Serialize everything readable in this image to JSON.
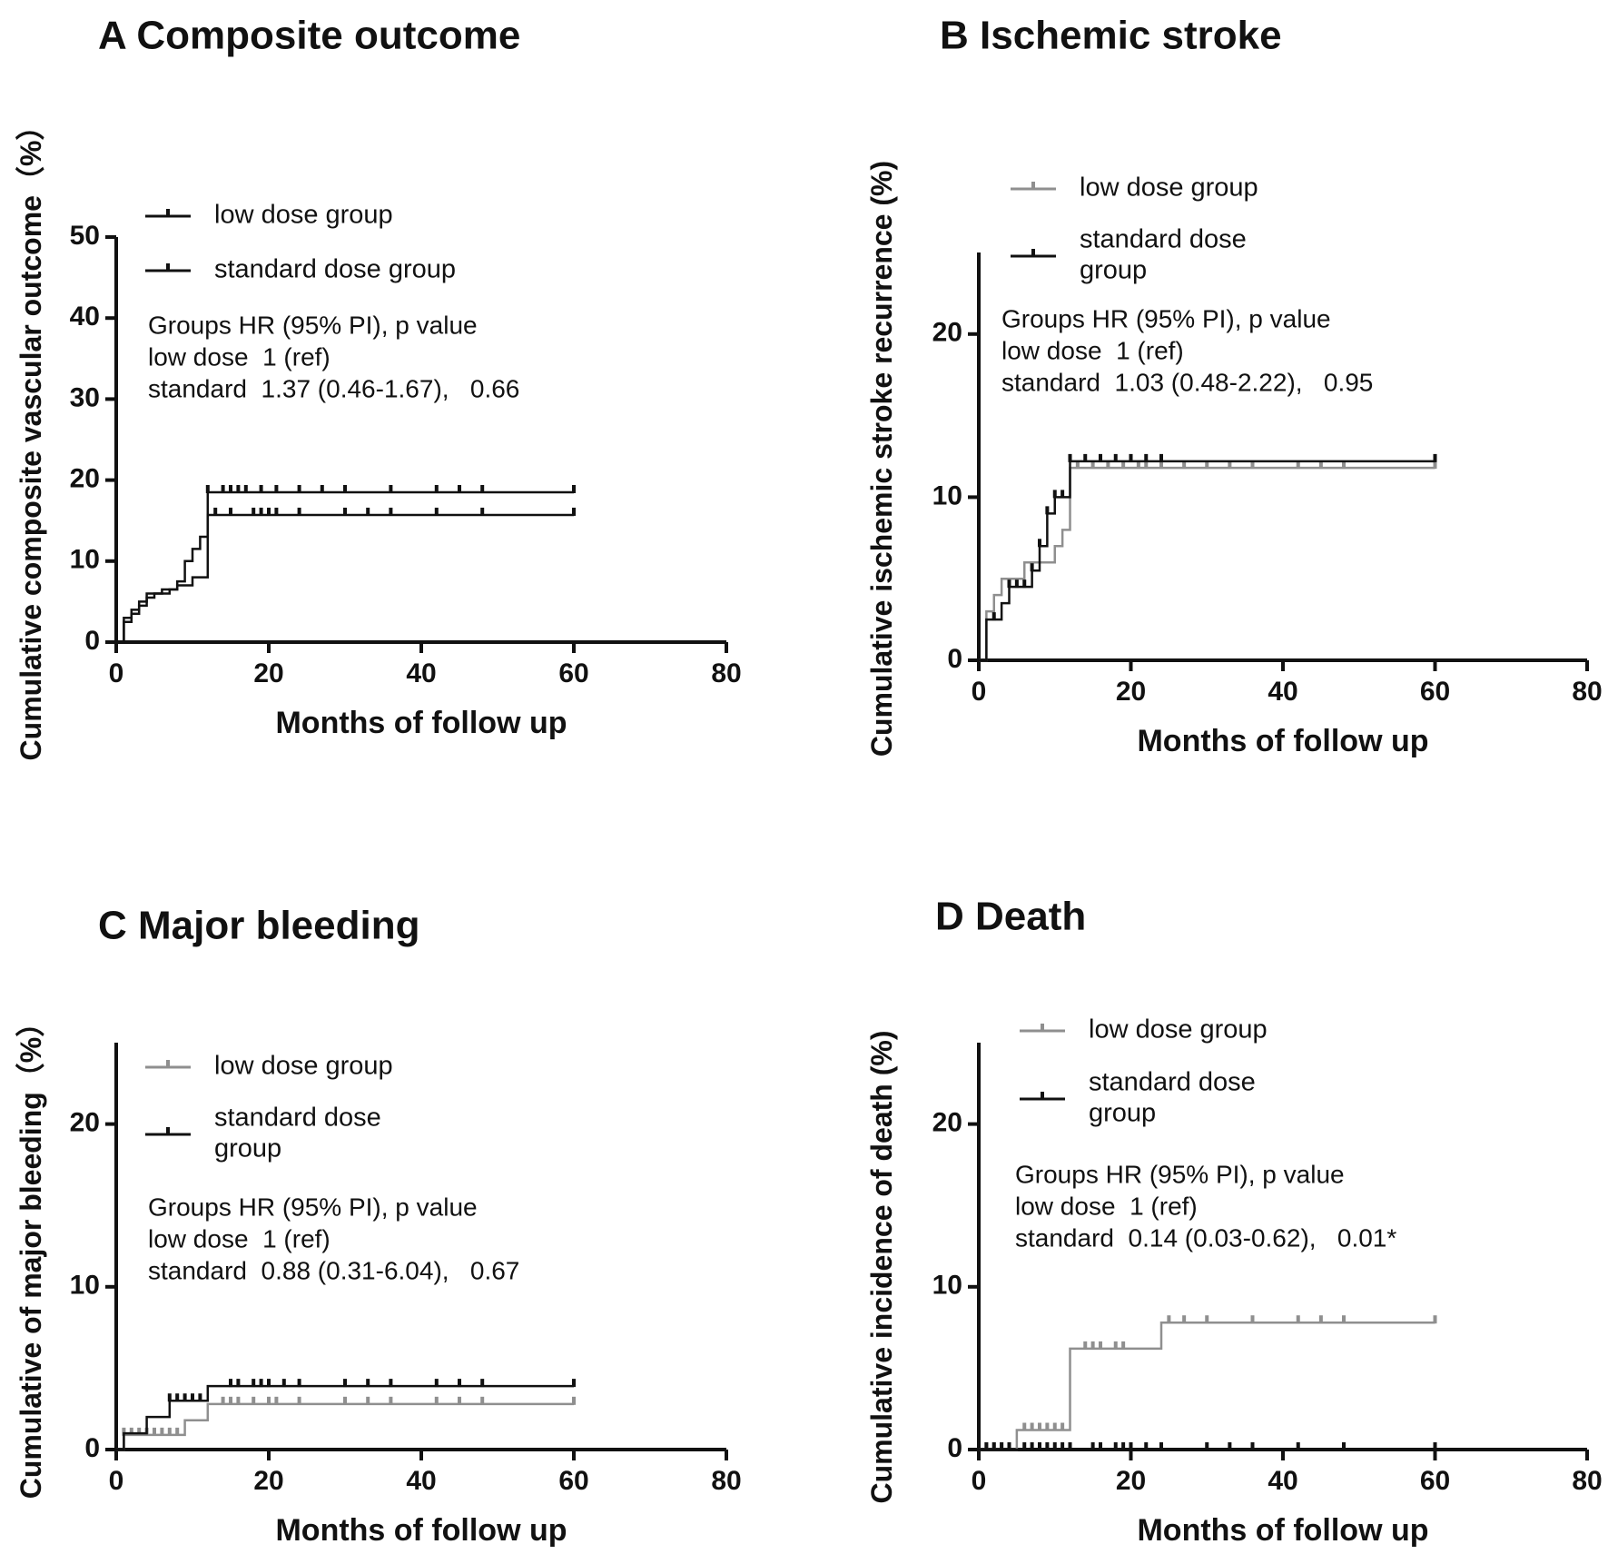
{
  "colors": {
    "low": "#8f8f8f",
    "standard": "#111111",
    "axis": "#111111"
  },
  "chart_data": [
    {
      "type": "line",
      "panel": "A",
      "title": "A Composite outcome",
      "xlabel": "Months of follow up",
      "ylabel": "Cumulative composite vascular outcome（%）",
      "xlim": [
        0,
        80
      ],
      "ylim": [
        0,
        50
      ],
      "xticks": [
        "0",
        "20",
        "40",
        "60",
        "80"
      ],
      "yticks": [
        "0",
        "10",
        "20",
        "30",
        "40",
        "50"
      ],
      "legend": [
        "low dose group",
        "standard dose group"
      ],
      "stats": [
        "Groups HR (95% PI), p value",
        "low dose  1 (ref)",
        "standard  1.37 (0.46-1.67),   0.66"
      ],
      "series": [
        {
          "name": "low dose group",
          "color_key": "standard",
          "steps": [
            [
              0,
              0
            ],
            [
              1,
              3
            ],
            [
              2,
              4
            ],
            [
              3,
              5
            ],
            [
              4,
              6
            ],
            [
              6,
              6.5
            ],
            [
              8,
              7.5
            ],
            [
              9,
              10
            ],
            [
              10,
              11.5
            ],
            [
              11,
              13
            ],
            [
              12,
              18.5
            ],
            [
              60,
              18.5
            ]
          ],
          "censor": [
            12,
            14,
            15,
            16,
            17,
            19,
            21,
            24,
            27,
            30,
            36,
            42,
            45,
            48,
            60
          ]
        },
        {
          "name": "standard dose group",
          "color_key": "standard",
          "steps": [
            [
              0,
              0
            ],
            [
              1,
              2.5
            ],
            [
              2,
              3.5
            ],
            [
              3,
              4.5
            ],
            [
              4,
              5.5
            ],
            [
              5,
              6
            ],
            [
              7,
              6.5
            ],
            [
              8,
              7
            ],
            [
              10,
              8
            ],
            [
              12,
              15.7
            ],
            [
              60,
              15.7
            ]
          ],
          "censor": [
            13,
            15,
            18,
            19,
            20,
            21,
            24,
            30,
            33,
            36,
            42,
            48,
            60
          ]
        }
      ]
    },
    {
      "type": "line",
      "panel": "B",
      "title": "B Ischemic stroke",
      "xlabel": "Months of follow up",
      "ylabel": "Cumulative ischemic stroke recurrence (%)",
      "xlim": [
        0,
        80
      ],
      "ylim": [
        0,
        25
      ],
      "xticks": [
        "0",
        "20",
        "40",
        "60",
        "80"
      ],
      "yticks": [
        "0",
        "10",
        "20"
      ],
      "legend": [
        "low dose group",
        "standard dose group"
      ],
      "legend_lines": [
        [
          "low dose group"
        ],
        [
          "standard dose",
          "group"
        ]
      ],
      "stats": [
        "Groups HR (95% PI), p value",
        "low dose  1 (ref)",
        "standard  1.03 (0.48-2.22),   0.95"
      ],
      "series": [
        {
          "name": "low dose group",
          "color_key": "low",
          "steps": [
            [
              0,
              0
            ],
            [
              1,
              3
            ],
            [
              2,
              4
            ],
            [
              3,
              5
            ],
            [
              5,
              5
            ],
            [
              6,
              6
            ],
            [
              9,
              6
            ],
            [
              10,
              7
            ],
            [
              11,
              8
            ],
            [
              12,
              11.8
            ],
            [
              60,
              11.8
            ]
          ],
          "censor": [
            13,
            15,
            17,
            19,
            21,
            22,
            24,
            27,
            30,
            33,
            36,
            42,
            45,
            48,
            60
          ]
        },
        {
          "name": "standard dose group",
          "color_key": "standard",
          "steps": [
            [
              0,
              0
            ],
            [
              1,
              2.5
            ],
            [
              3,
              3.5
            ],
            [
              4,
              4.5
            ],
            [
              7,
              5.5
            ],
            [
              8,
              7
            ],
            [
              9,
              9
            ],
            [
              10,
              10
            ],
            [
              12,
              12.2
            ],
            [
              60,
              12.2
            ]
          ],
          "censor": [
            2,
            4,
            5,
            6,
            7,
            8,
            9,
            10,
            11,
            12,
            14,
            16,
            18,
            20,
            22,
            24,
            60
          ]
        }
      ]
    },
    {
      "type": "line",
      "panel": "C",
      "title": "C Major bleeding",
      "xlabel": "Months of follow up",
      "ylabel": "Cumulative of major bleeding（%）",
      "xlim": [
        0,
        80
      ],
      "ylim": [
        0,
        25
      ],
      "xticks": [
        "0",
        "20",
        "40",
        "60",
        "80"
      ],
      "yticks": [
        "0",
        "10",
        "20"
      ],
      "legend": [
        "low dose group",
        "standard dose group"
      ],
      "legend_lines": [
        [
          "low dose group"
        ],
        [
          "standard dose",
          "group"
        ]
      ],
      "stats": [
        "Groups HR (95% PI), p value",
        "low dose  1 (ref)",
        "standard  0.88 (0.31-6.04),   0.67"
      ],
      "series": [
        {
          "name": "low dose group",
          "color_key": "low",
          "steps": [
            [
              0,
              0
            ],
            [
              1,
              0.9
            ],
            [
              9,
              0.9
            ],
            [
              9,
              1.8
            ],
            [
              12,
              1.8
            ],
            [
              12,
              2.8
            ],
            [
              60,
              2.8
            ]
          ],
          "censor": [
            1,
            2,
            3,
            4,
            5,
            6,
            7,
            8,
            14,
            15,
            16,
            18,
            20,
            21,
            24,
            30,
            33,
            36,
            42,
            45,
            48,
            60
          ]
        },
        {
          "name": "standard dose group",
          "color_key": "standard",
          "steps": [
            [
              0,
              0
            ],
            [
              1,
              1
            ],
            [
              4,
              1
            ],
            [
              4,
              2
            ],
            [
              7,
              2
            ],
            [
              7,
              3
            ],
            [
              12,
              3
            ],
            [
              12,
              3.9
            ],
            [
              60,
              3.9
            ]
          ],
          "censor": [
            7,
            8,
            9,
            10,
            11,
            15,
            16,
            18,
            19,
            20,
            22,
            24,
            30,
            33,
            36,
            42,
            45,
            48,
            60
          ]
        }
      ]
    },
    {
      "type": "line",
      "panel": "D",
      "title": "D Death",
      "xlabel": "Months of follow up",
      "ylabel": "Cumulative incidence of death (%)",
      "xlim": [
        0,
        80
      ],
      "ylim": [
        0,
        25
      ],
      "xticks": [
        "0",
        "20",
        "40",
        "60",
        "80"
      ],
      "yticks": [
        "0",
        "10",
        "20"
      ],
      "legend": [
        "low dose group",
        "standard dose group"
      ],
      "legend_lines": [
        [
          "low dose group"
        ],
        [
          "standard dose",
          "group"
        ]
      ],
      "stats": [
        "Groups HR (95% PI), p value",
        "low dose  1 (ref)",
        "standard  0.14 (0.03-0.62),   0.01*"
      ],
      "series": [
        {
          "name": "low dose group",
          "color_key": "low",
          "steps": [
            [
              0,
              0
            ],
            [
              5,
              0
            ],
            [
              5,
              1.2
            ],
            [
              12,
              1.2
            ],
            [
              12,
              6.2
            ],
            [
              24,
              6.2
            ],
            [
              24,
              7.8
            ],
            [
              60,
              7.8
            ]
          ],
          "censor": [
            1,
            2,
            3,
            4,
            6,
            7,
            8,
            9,
            10,
            11,
            14,
            15,
            16,
            18,
            19,
            25,
            27,
            30,
            36,
            42,
            45,
            48,
            60
          ]
        },
        {
          "name": "standard dose group",
          "color_key": "standard",
          "steps": [
            [
              0,
              0
            ],
            [
              60,
              0
            ]
          ],
          "censor": [
            1,
            2,
            3,
            4,
            6,
            7,
            8,
            9,
            10,
            11,
            12,
            15,
            16,
            18,
            19,
            20,
            22,
            24,
            30,
            33,
            36,
            42,
            48,
            60
          ]
        }
      ]
    }
  ]
}
